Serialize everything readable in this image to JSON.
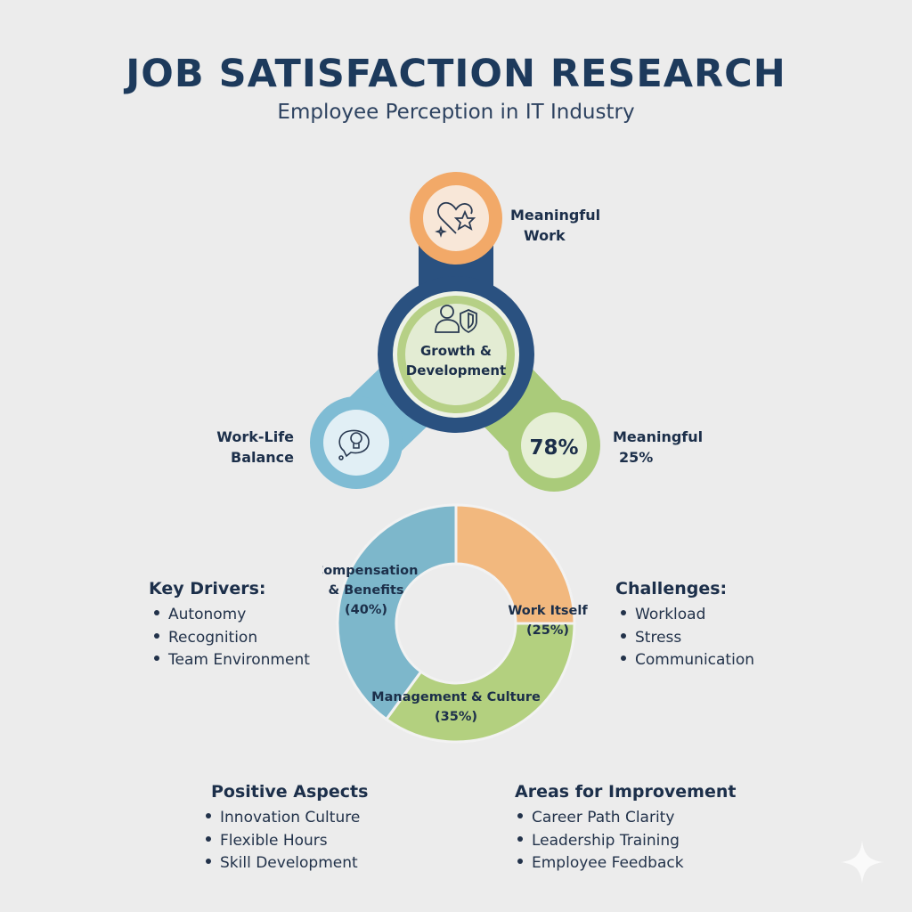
{
  "header": {
    "title": "JOB SATISFACTION RESEARCH",
    "subtitle": "Employee Perception in IT Industry"
  },
  "diagram": {
    "top_node": {
      "label_line1": "Meaningful",
      "label_line2": "Work",
      "icon": "heart-star-icon",
      "color": "#f2a968"
    },
    "center_node": {
      "label_line1": "Growth &",
      "label_line2": "Development",
      "icon": "person-shield-icon",
      "ring_color": "#2a5180",
      "inner_color": "#b6d086"
    },
    "left_node": {
      "label_line1": "Work-Life",
      "label_line2": "Balance",
      "icon": "lightbulb-speech-icon",
      "color": "#7fbcd4"
    },
    "right_node": {
      "value": "78%",
      "label_line1": "Meaningful",
      "label_line2": "25%",
      "color": "#aacb7a"
    }
  },
  "chart_data": {
    "type": "pie",
    "donut": true,
    "categories": [
      "Work Itself",
      "Management & Culture",
      "Compensation & Benefits"
    ],
    "values": [
      25,
      35,
      40
    ],
    "labels": [
      {
        "line1": "Work Itself",
        "line2": "(25%)"
      },
      {
        "line1": "Management & Culture",
        "line2": "(35%)"
      },
      {
        "line1": "Compensation",
        "line1b": "& Benefits",
        "line2": "(40%)"
      }
    ],
    "colors": [
      "#f2b87e",
      "#b3d07f",
      "#7db7cb"
    ]
  },
  "key_drivers": {
    "title": "Key Drivers:",
    "items": [
      "Autonomy",
      "Recognition",
      "Team Environment"
    ]
  },
  "challenges": {
    "title": "Challenges:",
    "items": [
      "Workload",
      "Stress",
      "Communication"
    ]
  },
  "positive_aspects": {
    "title": "Positive Aspects",
    "items": [
      "Innovation Culture",
      "Flexible Hours",
      "Skill Development"
    ]
  },
  "areas_for_improvement": {
    "title": "Areas for Improvement",
    "items": [
      "Career Path Clarity",
      "Leadership Training",
      "Employee Feedback"
    ]
  }
}
